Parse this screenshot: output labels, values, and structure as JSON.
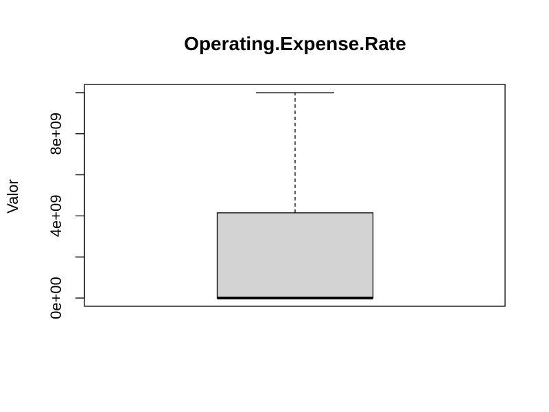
{
  "chart_data": {
    "type": "box",
    "title": "Operating.Expense.Rate",
    "xlabel": "",
    "ylabel": "Valor",
    "ylim": [
      -400000000,
      10400000000
    ],
    "yticks": [
      0,
      2000000000,
      4000000000,
      6000000000,
      8000000000,
      10000000000
    ],
    "ytick_labels": [
      "0e+00",
      "",
      "4e+09",
      "",
      "8e+09",
      ""
    ],
    "grid": false,
    "box": {
      "min": 0,
      "q1": 0,
      "median": 0,
      "q3": 4150000000,
      "max": 10000000000
    },
    "colors": {
      "box_fill": "#d3d3d3",
      "stroke": "#000000"
    }
  }
}
